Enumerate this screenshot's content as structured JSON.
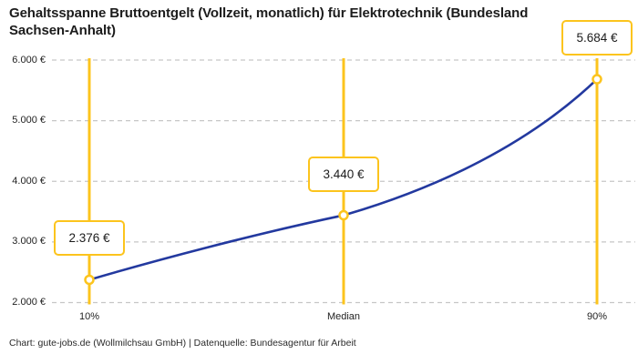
{
  "title": "Gehaltsspanne Bruttoentgelt (Vollzeit, monatlich) für Elektrotechnik (Bundesland Sachsen-Anhalt)",
  "footer": "Chart: gute-jobs.de (Wollmilchsau GmbH) | Datenquelle: Bundesagentur für Arbeit",
  "chart_data": {
    "type": "line",
    "title": "Gehaltsspanne Bruttoentgelt (Vollzeit, monatlich) für Elektrotechnik (Bundesland Sachsen-Anhalt)",
    "categories": [
      "10%",
      "Median",
      "90%"
    ],
    "values": [
      2376,
      3440,
      5684
    ],
    "value_labels": [
      "2.376 €",
      "3.440 €",
      "5.684 €"
    ],
    "xlabel": "",
    "ylabel": "",
    "ylim": [
      2000,
      6000
    ],
    "y_ticks": [
      2000,
      3000,
      4000,
      5000,
      6000
    ],
    "y_tick_labels": [
      "2.000 €",
      "3.000 €",
      "4.000 €",
      "5.000 €",
      "6.000 €"
    ],
    "grid": "horizontal-dashed",
    "legend": "none",
    "colors": {
      "curve": "#23399f",
      "accent": "#fcc41d",
      "gridline": "#c6c6c6",
      "marker_fill": "#ffffff",
      "text": "#1f1f1f"
    }
  }
}
